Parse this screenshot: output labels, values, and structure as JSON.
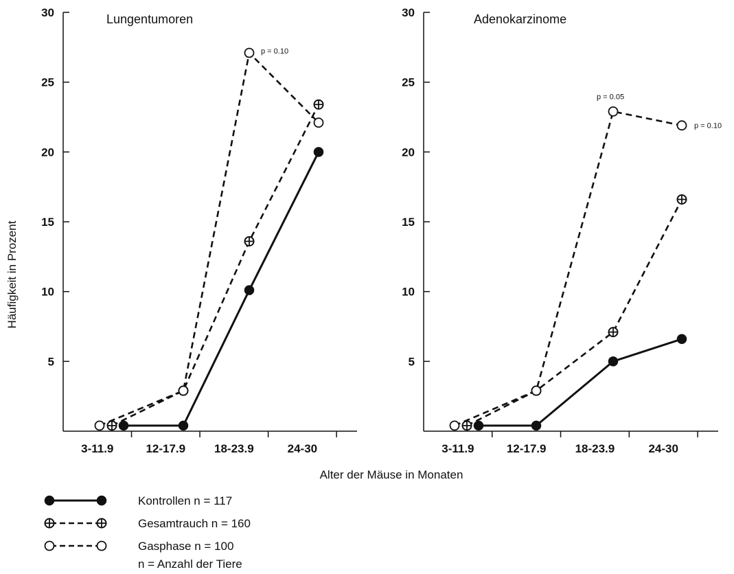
{
  "chart_data": [
    {
      "type": "line",
      "title": "Lungentumoren",
      "categories": [
        "3-11.9",
        "12-17.9",
        "18-23.9",
        "24-30"
      ],
      "ylim": [
        0,
        30
      ],
      "yticks": [
        5,
        10,
        15,
        20,
        25,
        30
      ],
      "series": [
        {
          "name": "Kontrollen n = 117",
          "values": [
            0.4,
            0.4,
            10.1,
            20.0
          ]
        },
        {
          "name": "Gesamtrauch n = 160",
          "values": [
            0.4,
            2.9,
            13.6,
            23.4
          ]
        },
        {
          "name": "Gasphase n = 100",
          "values": [
            0.4,
            2.9,
            27.1,
            22.1
          ]
        }
      ],
      "annotations": [
        {
          "text": "p = 0.10",
          "series": 2,
          "point": 2
        }
      ]
    },
    {
      "type": "line",
      "title": "Adenokarzinome",
      "categories": [
        "3-11.9",
        "12-17.9",
        "18-23.9",
        "24-30"
      ],
      "ylim": [
        0,
        30
      ],
      "yticks": [
        5,
        10,
        15,
        20,
        25,
        30
      ],
      "series": [
        {
          "name": "Kontrollen n = 117",
          "values": [
            0.4,
            0.4,
            5.0,
            6.6
          ]
        },
        {
          "name": "Gesamtrauch n = 160",
          "values": [
            0.4,
            2.9,
            7.1,
            16.6
          ]
        },
        {
          "name": "Gasphase n = 100",
          "values": [
            0.4,
            2.9,
            22.9,
            21.9
          ]
        }
      ],
      "annotations": [
        {
          "text": "p = 0.05",
          "series": 2,
          "point": 2
        },
        {
          "text": "p = 0.10",
          "series": 2,
          "point": 3
        }
      ]
    }
  ],
  "shared": {
    "ylabel": "Häufigkeit in Prozent",
    "xlabel": "Alter der Mäuse in Monaten"
  },
  "legend": {
    "items": [
      {
        "label": "Kontrollen n = 117",
        "marker": "filled-circle",
        "line": "solid"
      },
      {
        "label": "Gesamtrauch n = 160",
        "marker": "crossed-circle",
        "line": "dashed"
      },
      {
        "label": "Gasphase n = 100",
        "marker": "open-circle",
        "line": "dashed"
      }
    ],
    "footnote": "n = Anzahl der Tiere"
  }
}
